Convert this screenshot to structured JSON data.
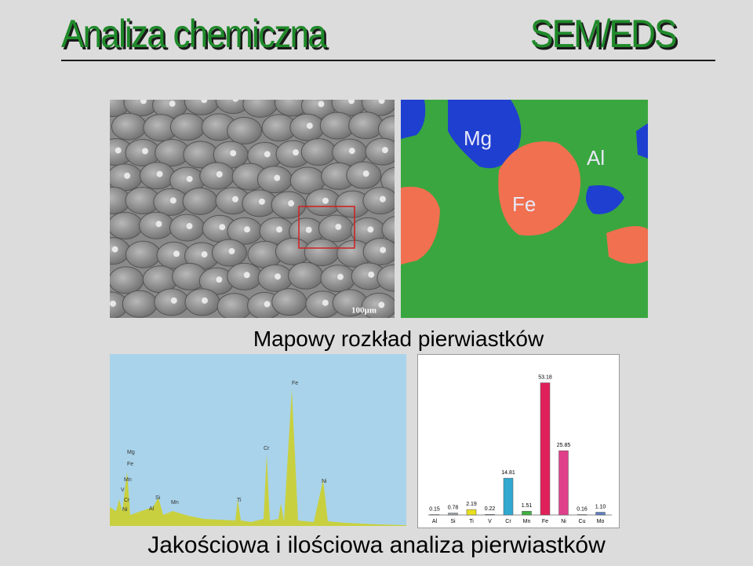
{
  "header": {
    "title": "Analiza chemiczna",
    "subtitle": "SEM/EDS"
  },
  "sem_image": {
    "scale_label": "100µm"
  },
  "eds_map": {
    "labels": [
      "Mg",
      "Al",
      "Fe"
    ]
  },
  "map_caption": "Mapowy rozkład pierwiastków",
  "spectrum": {
    "peak_labels": [
      "Fe",
      "Mg",
      "Fe",
      "Cr",
      "Ni",
      "Mn",
      "V",
      "Si",
      "Mn",
      "Ti",
      "Al",
      "Cr",
      "Ni"
    ]
  },
  "bar_chart": {
    "categories": [
      "Al",
      "Si",
      "Ti",
      "V",
      "Cr",
      "Mn",
      "Fe",
      "Ni",
      "Cu",
      "Mo"
    ],
    "values": [
      0.15,
      0.78,
      2.19,
      0.22,
      14.81,
      1.51,
      53.18,
      25.85,
      0.16,
      1.1
    ],
    "value_labels": [
      "0.15",
      "0.78",
      "2.19",
      "0.22",
      "14.81",
      "1.51",
      "53.18",
      "25.85",
      "0.16",
      "1.10"
    ],
    "colors": [
      "#8fb0d8",
      "#9aa0a8",
      "#e8e020",
      "#9080c0",
      "#30a8d0",
      "#40b040",
      "#e0205a",
      "#e0408a",
      "#a0a0a0",
      "#6080c0"
    ],
    "ylim": [
      0,
      60
    ]
  },
  "bottom_caption": "Jakościowa i ilościowa analiza pierwiastków"
}
